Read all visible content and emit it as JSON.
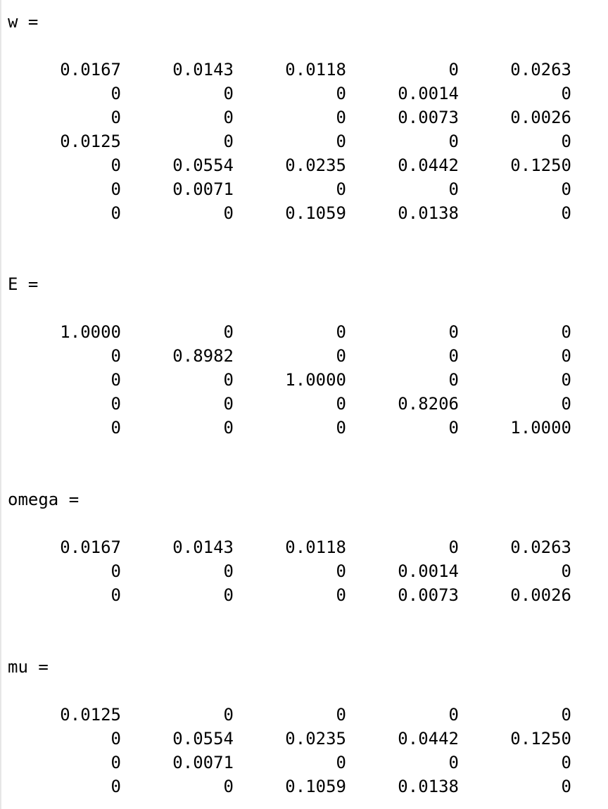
{
  "console": {
    "outputs": [
      {
        "label": "w =",
        "rows": [
          [
            "0.0167",
            "0.0143",
            "0.0118",
            "0",
            "0.0263"
          ],
          [
            "0",
            "0",
            "0",
            "0.0014",
            "0"
          ],
          [
            "0",
            "0",
            "0",
            "0.0073",
            "0.0026"
          ],
          [
            "0.0125",
            "0",
            "0",
            "0",
            "0"
          ],
          [
            "0",
            "0.0554",
            "0.0235",
            "0.0442",
            "0.1250"
          ],
          [
            "0",
            "0.0071",
            "0",
            "0",
            "0"
          ],
          [
            "0",
            "0",
            "0.1059",
            "0.0138",
            "0"
          ]
        ]
      },
      {
        "label": "E =",
        "rows": [
          [
            "1.0000",
            "0",
            "0",
            "0",
            "0"
          ],
          [
            "0",
            "0.8982",
            "0",
            "0",
            "0"
          ],
          [
            "0",
            "0",
            "1.0000",
            "0",
            "0"
          ],
          [
            "0",
            "0",
            "0",
            "0.8206",
            "0"
          ],
          [
            "0",
            "0",
            "0",
            "0",
            "1.0000"
          ]
        ]
      },
      {
        "label": "omega =",
        "rows": [
          [
            "0.0167",
            "0.0143",
            "0.0118",
            "0",
            "0.0263"
          ],
          [
            "0",
            "0",
            "0",
            "0.0014",
            "0"
          ],
          [
            "0",
            "0",
            "0",
            "0.0073",
            "0.0026"
          ]
        ]
      },
      {
        "label": "mu =",
        "rows": [
          [
            "0.0125",
            "0",
            "0",
            "0",
            "0"
          ],
          [
            "0",
            "0.0554",
            "0.0235",
            "0.0442",
            "0.1250"
          ],
          [
            "0",
            "0.0071",
            "0",
            "0",
            "0"
          ],
          [
            "0",
            "0",
            "0.1059",
            "0.0138",
            "0"
          ]
        ]
      }
    ]
  }
}
